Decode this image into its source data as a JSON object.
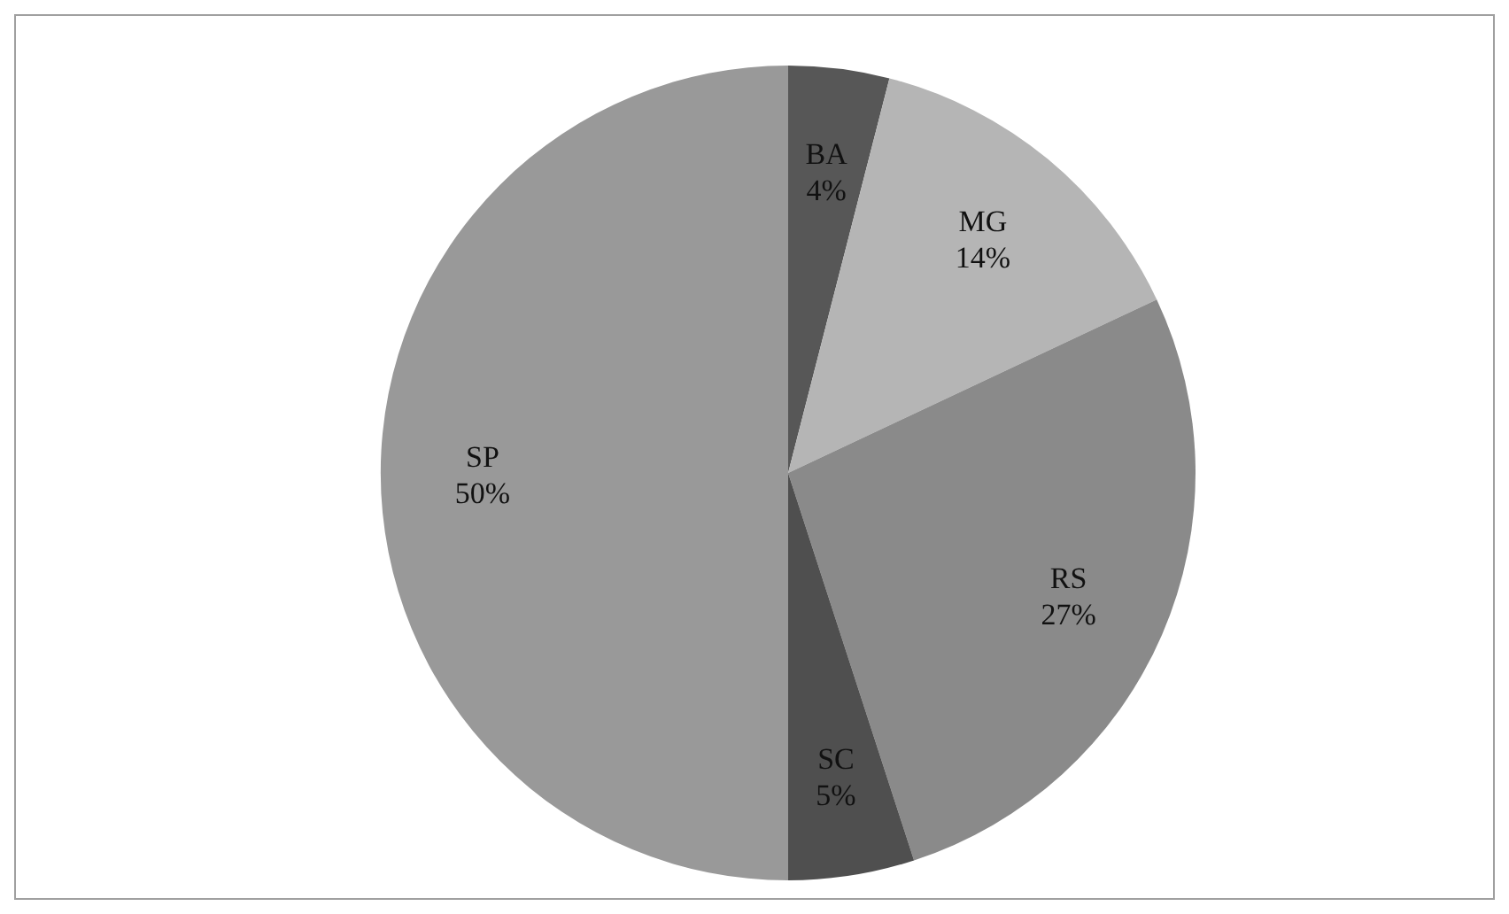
{
  "chart_data": {
    "type": "pie",
    "categories": [
      "BA",
      "MG",
      "RS",
      "SC",
      "SP"
    ],
    "values": [
      4,
      14,
      27,
      5,
      50
    ],
    "value_labels": [
      "4%",
      "14%",
      "27%",
      "5%",
      "50%"
    ],
    "colors": [
      "#575757",
      "#b5b5b5",
      "#8a8a8a",
      "#4f4f4f",
      "#999999"
    ]
  }
}
